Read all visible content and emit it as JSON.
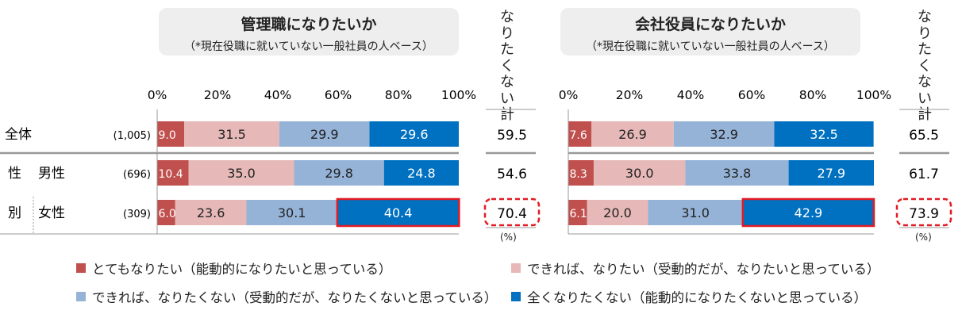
{
  "panels": [
    {
      "title": "管理職になりたいか",
      "subtitle": "（*現在役職に就いていない一般社員の人ベース）",
      "side_header": "なりたくない計"
    },
    {
      "title": "会社役員になりたいか",
      "subtitle": "（*現在役職に就いていない一般社員の人ベース）",
      "side_header": "なりたくない計"
    }
  ],
  "unit_note": "(%)",
  "groups": {
    "total": "全体",
    "sex_part1": "性",
    "sex_part2": "別"
  },
  "rows": [
    {
      "label": "全体",
      "n": "(1,005)"
    },
    {
      "label": "男性",
      "n": "(696)"
    },
    {
      "label": "女性",
      "n": "(309)"
    }
  ],
  "legend": [
    {
      "label": "とてもなりたい（能動的になりたいと思っている）",
      "color": "#c0504d"
    },
    {
      "label": "できれば、なりたい（受動的だが、なりたいと思っている）",
      "color": "#e6b9b8"
    },
    {
      "label": "できれば、なりたくない（受動的だが、なりたくないと思っている）",
      "color": "#95b3d7"
    },
    {
      "label": "全くなりたくない（能動的になりたくないと思っている）",
      "color": "#0070c0"
    }
  ],
  "highlight_color": "#e31b23",
  "chart_data": [
    {
      "type": "bar",
      "orientation": "horizontal-stacked-100",
      "title": "管理職になりたいか",
      "axis_ticks": [
        "0%",
        "20%",
        "40%",
        "60%",
        "80%",
        "100%"
      ],
      "xlim": [
        0,
        100
      ],
      "categories": [
        "全体",
        "男性",
        "女性"
      ],
      "series": [
        {
          "name": "とてもなりたい（能動的になりたいと思っている）",
          "values": [
            9.0,
            10.4,
            6.0
          ]
        },
        {
          "name": "できれば、なりたい（受動的だが、なりたいと思っている）",
          "values": [
            31.5,
            35.0,
            23.6
          ]
        },
        {
          "name": "できれば、なりたくない（受動的だが、なりたくないと思っている）",
          "values": [
            29.9,
            29.8,
            30.1
          ]
        },
        {
          "name": "全くなりたくない（能動的になりたくないと思っている）",
          "values": [
            29.6,
            24.8,
            40.4
          ]
        }
      ],
      "totals": {
        "name": "なりたくない計",
        "values": [
          59.5,
          54.6,
          70.4
        ]
      },
      "highlight": {
        "category": "女性",
        "series": "全くなりたくない（能動的になりたくないと思っている）",
        "total": true
      }
    },
    {
      "type": "bar",
      "orientation": "horizontal-stacked-100",
      "title": "会社役員になりたいか",
      "axis_ticks": [
        "0%",
        "20%",
        "40%",
        "60%",
        "80%",
        "100%"
      ],
      "xlim": [
        0,
        100
      ],
      "categories": [
        "全体",
        "男性",
        "女性"
      ],
      "series": [
        {
          "name": "とてもなりたい（能動的になりたいと思っている）",
          "values": [
            7.6,
            8.3,
            6.1
          ]
        },
        {
          "name": "できれば、なりたい（受動的だが、なりたいと思っている）",
          "values": [
            26.9,
            30.0,
            20.0
          ]
        },
        {
          "name": "できれば、なりたくない（受動的だが、なりたくないと思っている）",
          "values": [
            32.9,
            33.8,
            31.0
          ]
        },
        {
          "name": "全くなりたくない（能動的になりたくないと思っている）",
          "values": [
            32.5,
            27.9,
            42.9
          ]
        }
      ],
      "totals": {
        "name": "なりたくない計",
        "values": [
          65.5,
          61.7,
          73.9
        ]
      },
      "highlight": {
        "category": "女性",
        "series": "全くなりたくない（能動的になりたくないと思っている）",
        "total": true
      }
    }
  ]
}
